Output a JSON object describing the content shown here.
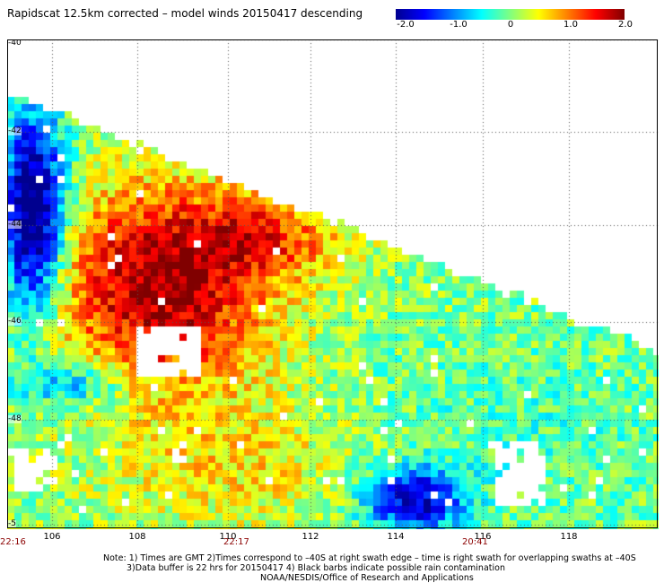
{
  "title": "Rapidscat 12.5km corrected – model winds 20150417 descending",
  "colorbar": {
    "labels": [
      "-2.0",
      "-1.0",
      "0",
      "1.0",
      "2.0"
    ],
    "colors": [
      "#00008f",
      "#0000ff",
      "#0080ff",
      "#00ffff",
      "#80ff80",
      "#ffff00",
      "#ff8000",
      "#ff0000",
      "#800000"
    ]
  },
  "lat_labels": [
    "-40",
    "-42",
    "-44",
    "-46",
    "-48",
    "-5"
  ],
  "lon_labels": [
    "106",
    "108",
    "110",
    "112",
    "114",
    "116",
    "118"
  ],
  "time_labels": [
    "22:16",
    "22:17",
    "20:41"
  ],
  "notes": {
    "line1": "Note: 1) Times are GMT 2)Times correspond to –40S at right swath edge – time is right swath for overlapping swaths at –40S",
    "line2": "3)Data buffer is 22 hrs for 20150417 4) Black barbs indicate possible rain contamination",
    "line3": "NOAA/NESDIS/Office of Research and Applications"
  }
}
